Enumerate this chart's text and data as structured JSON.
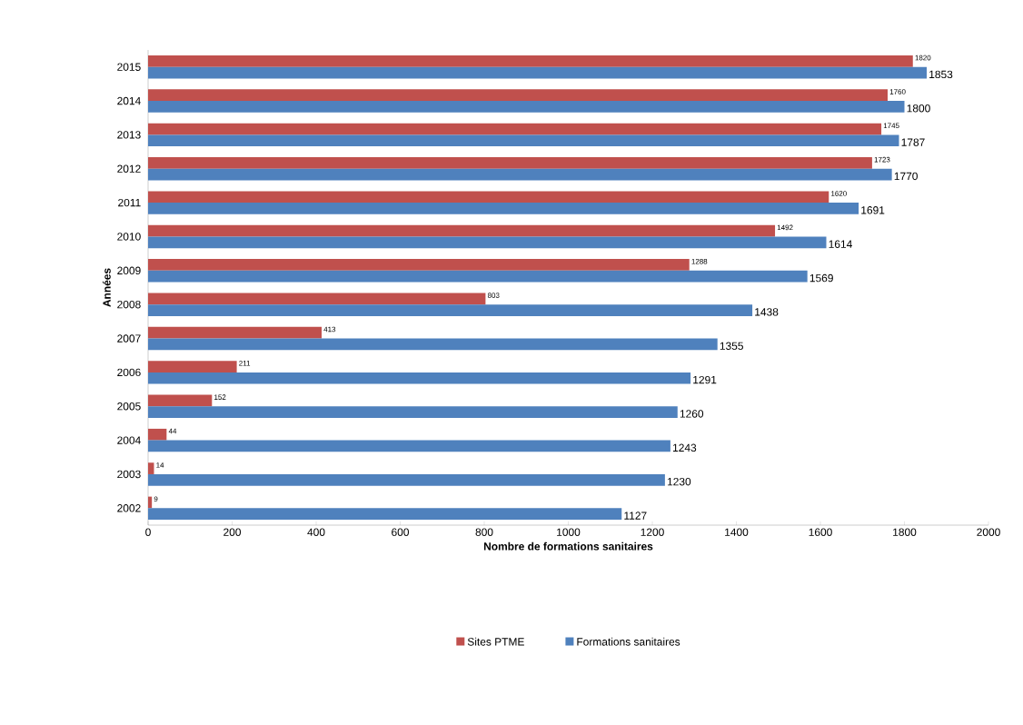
{
  "chart_data": {
    "type": "bar",
    "orientation": "horizontal",
    "ylabel": "Années",
    "xlabel": "Nombre de formations sanitaires",
    "categories": [
      "2015",
      "2014",
      "2013",
      "2012",
      "2011",
      "2010",
      "2009",
      "2008",
      "2007",
      "2006",
      "2005",
      "2004",
      "2003",
      "2002"
    ],
    "series": [
      {
        "name": "Sites PTME",
        "color": "#c0504d",
        "values": [
          1820,
          1760,
          1745,
          1723,
          1620,
          1492,
          1288,
          803,
          413,
          211,
          152,
          44,
          14,
          9
        ]
      },
      {
        "name": "Formations sanitaires",
        "color": "#4f81bd",
        "values": [
          1853,
          1800,
          1787,
          1770,
          1691,
          1614,
          1569,
          1438,
          1355,
          1291,
          1260,
          1243,
          1230,
          1127
        ]
      }
    ],
    "xlim": [
      0,
      2000
    ],
    "xticks": [
      0,
      200,
      400,
      600,
      800,
      1000,
      1200,
      1400,
      1600,
      1800,
      2000
    ],
    "data_labels": true,
    "legend": "bottom",
    "grid": false
  }
}
